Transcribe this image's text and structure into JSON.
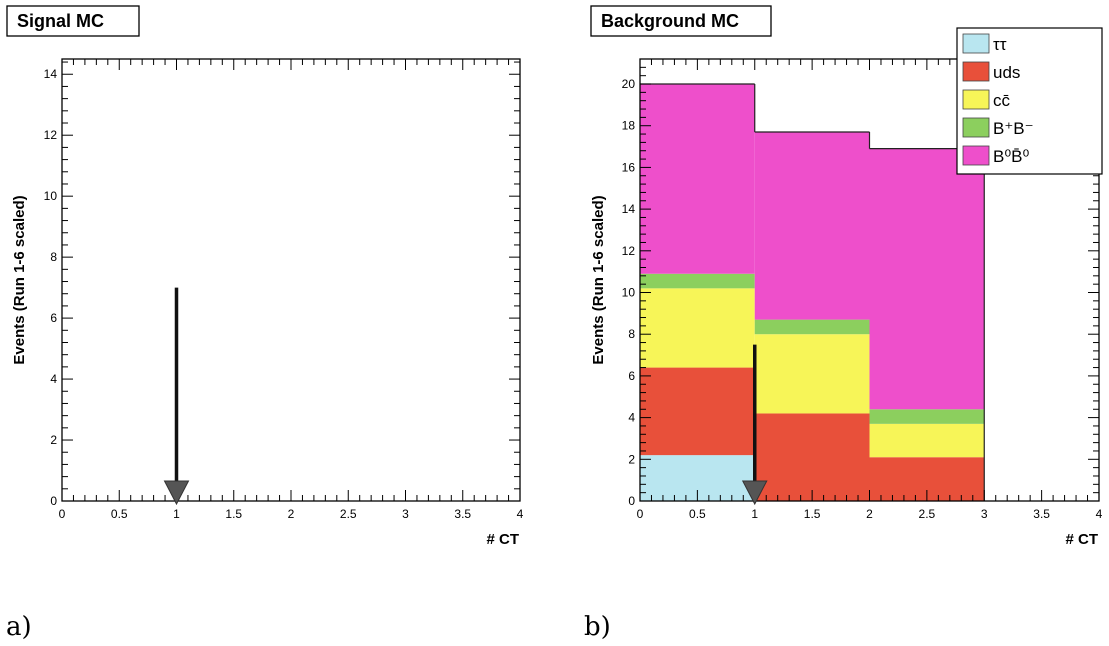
{
  "panels": {
    "a": {
      "caption": "a)"
    },
    "b": {
      "caption": "b)"
    }
  },
  "chart_data": [
    {
      "type": "bar",
      "title": "Signal MC",
      "xlabel": "# CT",
      "ylabel": "Events (Run 1-6 scaled)",
      "xlim": [
        0,
        4
      ],
      "ylim": [
        0,
        14.5
      ],
      "x_ticks": [
        0,
        0.5,
        1,
        1.5,
        2,
        2.5,
        3,
        3.5,
        4
      ],
      "x_tick_labels": [
        "0",
        "0.5",
        "1",
        "1.5",
        "2",
        "2.5",
        "3",
        "3.5",
        "4"
      ],
      "y_ticks": [
        0,
        2,
        4,
        6,
        8,
        10,
        12,
        14
      ],
      "y_tick_labels": [
        "0",
        "2",
        "4",
        "6",
        "8",
        "10",
        "12",
        "14"
      ],
      "bins": [
        [
          0,
          1
        ],
        [
          1,
          2
        ],
        [
          2,
          3
        ],
        [
          3,
          4
        ]
      ],
      "series": [],
      "cut_arrow": {
        "x": 1,
        "y_top": 7.0,
        "color": "#555555"
      },
      "grid": false
    },
    {
      "type": "bar",
      "stacked": true,
      "title": "Background MC",
      "xlabel": "# CT",
      "ylabel": "Events (Run 1-6 scaled)",
      "xlim": [
        0,
        4
      ],
      "ylim": [
        0,
        21.2
      ],
      "x_ticks": [
        0,
        0.5,
        1,
        1.5,
        2,
        2.5,
        3,
        3.5,
        4
      ],
      "x_tick_labels": [
        "0",
        "0.5",
        "1",
        "1.5",
        "2",
        "2.5",
        "3",
        "3.5",
        "4"
      ],
      "y_ticks": [
        0,
        2,
        4,
        6,
        8,
        10,
        12,
        14,
        16,
        18,
        20
      ],
      "y_tick_labels": [
        "0",
        "2",
        "4",
        "6",
        "8",
        "10",
        "12",
        "14",
        "16",
        "18",
        "20"
      ],
      "bins": [
        [
          0,
          1
        ],
        [
          1,
          2
        ],
        [
          2,
          3
        ]
      ],
      "series": [
        {
          "name": "ττ",
          "color": "#b9e6f0",
          "values": [
            2.2,
            0,
            0
          ]
        },
        {
          "name": "uds",
          "color": "#e8503a",
          "values": [
            4.2,
            4.2,
            2.1
          ]
        },
        {
          "name": "cc̄",
          "color": "#f7f558",
          "values": [
            3.8,
            3.8,
            1.6
          ]
        },
        {
          "name": "B⁺B⁻",
          "color": "#8ccf5e",
          "values": [
            0.7,
            0.7,
            0.7
          ]
        },
        {
          "name": "B⁰B̄⁰",
          "color": "#ee4fcb",
          "values": [
            9.1,
            9.0,
            12.5
          ]
        }
      ],
      "cut_arrow": {
        "x": 1,
        "y_top": 7.5,
        "color": "#555555"
      },
      "legend_position": "top-right",
      "grid": false
    }
  ]
}
